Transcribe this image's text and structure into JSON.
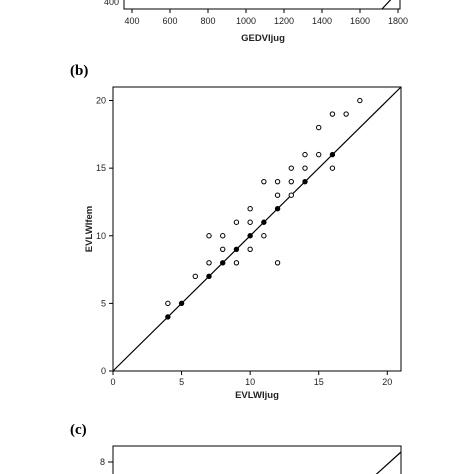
{
  "chart_data": [
    {
      "panel": "",
      "type": "scatter",
      "title": "",
      "xlabel": "GEDVIjug",
      "ylabel": "",
      "xticks": [
        400,
        600,
        800,
        1000,
        1200,
        1400,
        1600,
        1800
      ],
      "yticks": [
        400
      ],
      "cropped": true
    },
    {
      "panel": "(b)",
      "type": "scatter",
      "title": "",
      "xlabel": "EVLWIjug",
      "ylabel": "EVLWIfem",
      "xlim": [
        0,
        21
      ],
      "ylim": [
        0,
        21
      ],
      "xticks": [
        0,
        5,
        10,
        15,
        20
      ],
      "yticks": [
        0,
        5,
        10,
        15,
        20
      ],
      "identity_line": true,
      "grid": false,
      "points": [
        {
          "x": 4,
          "y": 4,
          "filled": true
        },
        {
          "x": 4,
          "y": 5
        },
        {
          "x": 5,
          "y": 5,
          "filled": true
        },
        {
          "x": 6,
          "y": 7
        },
        {
          "x": 7,
          "y": 7,
          "filled": true
        },
        {
          "x": 7,
          "y": 8
        },
        {
          "x": 7,
          "y": 10
        },
        {
          "x": 8,
          "y": 8,
          "filled": true
        },
        {
          "x": 8,
          "y": 9
        },
        {
          "x": 8,
          "y": 10
        },
        {
          "x": 9,
          "y": 8
        },
        {
          "x": 9,
          "y": 9,
          "filled": true
        },
        {
          "x": 9,
          "y": 11
        },
        {
          "x": 10,
          "y": 9
        },
        {
          "x": 10,
          "y": 10,
          "filled": true
        },
        {
          "x": 10,
          "y": 11
        },
        {
          "x": 10,
          "y": 12
        },
        {
          "x": 11,
          "y": 10
        },
        {
          "x": 11,
          "y": 11,
          "filled": true
        },
        {
          "x": 11,
          "y": 14
        },
        {
          "x": 12,
          "y": 8
        },
        {
          "x": 12,
          "y": 12,
          "filled": true
        },
        {
          "x": 12,
          "y": 13
        },
        {
          "x": 12,
          "y": 14
        },
        {
          "x": 13,
          "y": 13
        },
        {
          "x": 13,
          "y": 14
        },
        {
          "x": 13,
          "y": 15
        },
        {
          "x": 14,
          "y": 14,
          "filled": true
        },
        {
          "x": 14,
          "y": 15
        },
        {
          "x": 14,
          "y": 16
        },
        {
          "x": 15,
          "y": 16
        },
        {
          "x": 15,
          "y": 18
        },
        {
          "x": 16,
          "y": 15
        },
        {
          "x": 16,
          "y": 16,
          "filled": true
        },
        {
          "x": 16,
          "y": 19
        },
        {
          "x": 17,
          "y": 19
        },
        {
          "x": 18,
          "y": 20
        }
      ]
    },
    {
      "panel": "(c)",
      "type": "scatter",
      "title": "",
      "xlabel": "",
      "ylabel": "",
      "yticks": [
        8
      ],
      "identity_line": true,
      "cropped": true
    }
  ]
}
